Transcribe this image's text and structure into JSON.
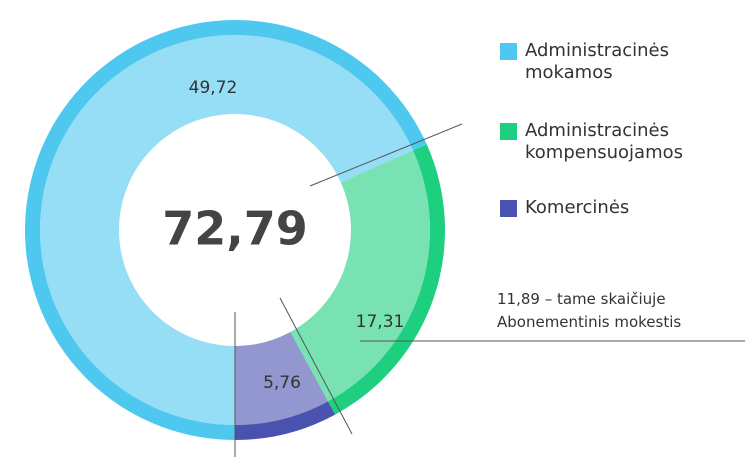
{
  "chart_data": {
    "type": "donut",
    "categories": [
      "Administracinės mokamos",
      "Administracinės kompensuojamos",
      "Komercinės"
    ],
    "values": [
      49.72,
      17.31,
      5.76
    ],
    "value_labels": [
      "49,72",
      "17,31",
      "5,76"
    ],
    "colors": [
      "#4fc8f0",
      "#1ecf7f",
      "#4a52b0"
    ],
    "center_label": "72,79",
    "annotation": [
      "11,89 – tame skaičiuje",
      "Abonementinis mokestis"
    ]
  }
}
